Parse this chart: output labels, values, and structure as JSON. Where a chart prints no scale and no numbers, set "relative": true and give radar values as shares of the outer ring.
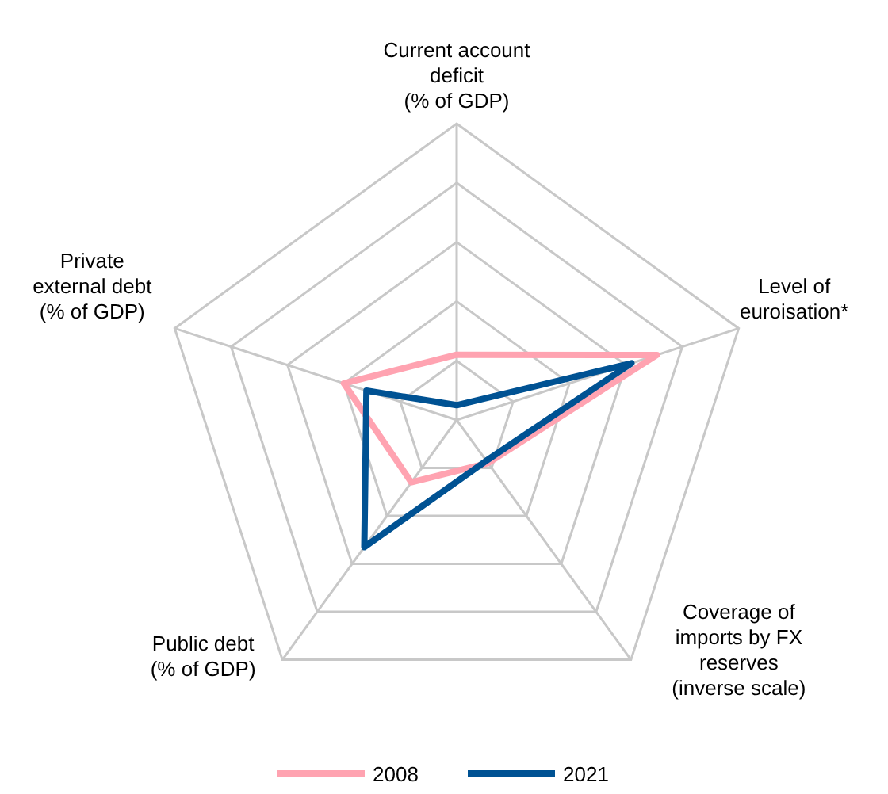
{
  "chart_data": {
    "type": "radar",
    "relative": true,
    "categories": [
      "Current account deficit (% of GDP)",
      "Level of euroisation*",
      "Coverage of imports by FX reserves (inverse scale)",
      "Public debt (% of GDP)",
      "Private external debt (% of GDP)"
    ],
    "series": [
      {
        "name": "2008",
        "color": "#ffa3b1",
        "values": [
          0.22,
          0.71,
          0.18,
          0.26,
          0.4
        ]
      },
      {
        "name": "2021",
        "color": "#005293",
        "values": [
          0.05,
          0.62,
          0.17,
          0.53,
          0.32
        ]
      }
    ],
    "grid": true,
    "legend": "bottom",
    "marker": "none"
  }
}
